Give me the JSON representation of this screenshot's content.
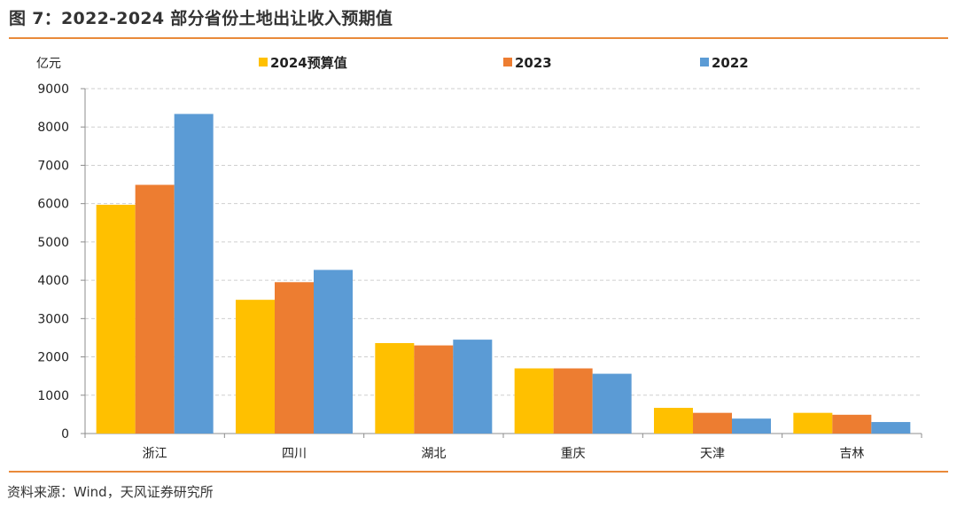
{
  "figure": {
    "title": "图 7：2022-2024 部分省份土地出让收入预期值",
    "source": "资料来源：Wind，天风证券研究所",
    "accent_color": "#E98A3A"
  },
  "chart_data": {
    "type": "bar",
    "title": "",
    "xlabel": "",
    "ylabel": "亿元",
    "ylim": [
      0,
      9000
    ],
    "yticks": [
      0,
      1000,
      2000,
      3000,
      4000,
      5000,
      6000,
      7000,
      8000,
      9000
    ],
    "grid": true,
    "legend_position": "top",
    "categories": [
      "浙江",
      "四川",
      "湖北",
      "重庆",
      "天津",
      "吉林"
    ],
    "series": [
      {
        "name": "2024预算值",
        "color": "#FFC000",
        "values": [
          5970,
          3490,
          2360,
          1700,
          670,
          540
        ]
      },
      {
        "name": "2023",
        "color": "#ED7D31",
        "values": [
          6490,
          3950,
          2300,
          1700,
          540,
          490
        ]
      },
      {
        "name": "2022",
        "color": "#5B9BD5",
        "values": [
          8340,
          4270,
          2450,
          1560,
          390,
          300
        ]
      }
    ]
  }
}
